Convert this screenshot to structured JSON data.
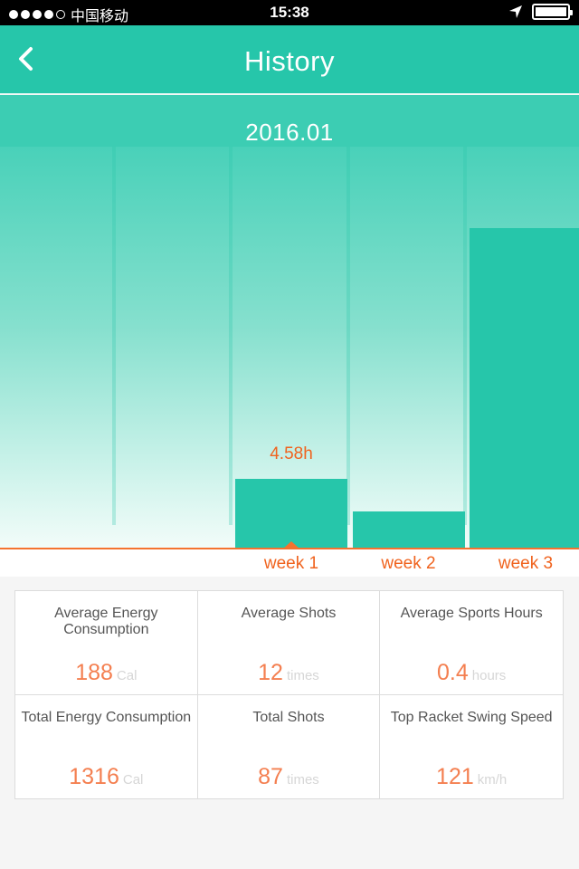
{
  "status_bar": {
    "carrier": "中国移动",
    "time": "15:38",
    "signal_bars": 4
  },
  "header": {
    "title": "History",
    "back_icon": "chevron-left-icon"
  },
  "month": "2016.01",
  "colors": {
    "accent": "#26c6aa",
    "highlight": "#f0631e",
    "stat_value": "#f47f50"
  },
  "chart_data": {
    "type": "bar",
    "categories": [
      "",
      "",
      "week  1",
      "week  2",
      "week  3"
    ],
    "values": [
      0,
      0,
      4.58,
      2.4,
      21.2
    ],
    "selected_index": 2,
    "selected_label": "4.58h"
  },
  "stats": [
    {
      "label": "Average Energy Consumption",
      "value": "188",
      "unit": "Cal"
    },
    {
      "label": "Average Shots",
      "value": "12",
      "unit": "times"
    },
    {
      "label": "Average Sports Hours",
      "value": "0.4",
      "unit": "hours"
    },
    {
      "label": "Total Energy Consumption",
      "value": "1316",
      "unit": "Cal"
    },
    {
      "label": "Total Shots",
      "value": "87",
      "unit": "times"
    },
    {
      "label": "Top Racket Swing Speed",
      "value": "121",
      "unit": "km/h"
    }
  ]
}
